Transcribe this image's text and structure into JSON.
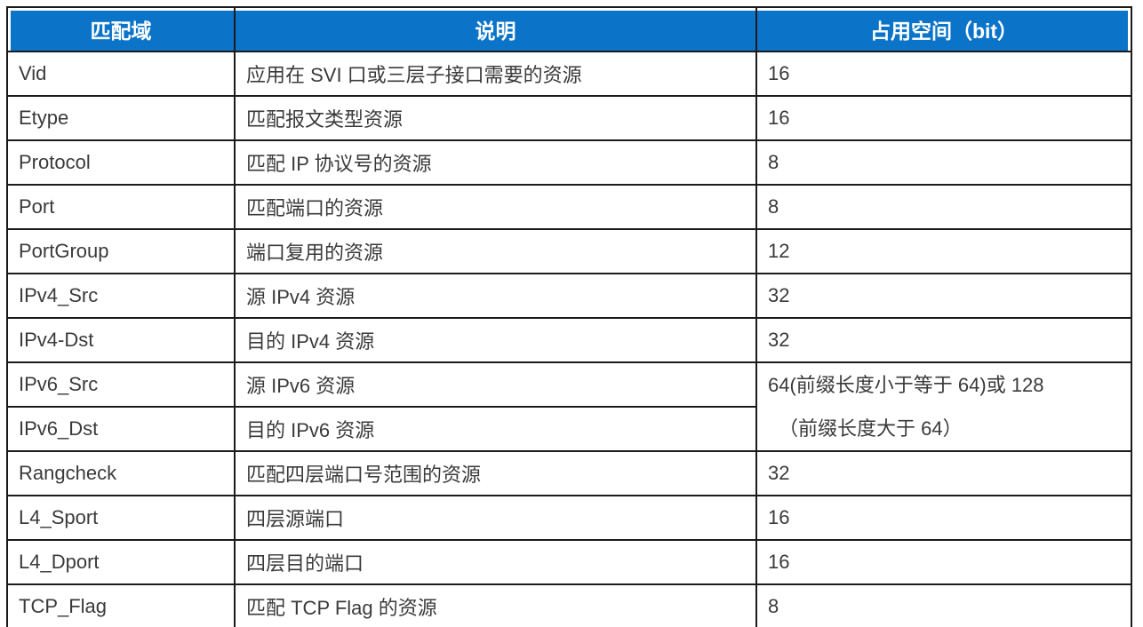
{
  "table": {
    "columns": [
      {
        "label": "匹配域"
      },
      {
        "label": "说明"
      },
      {
        "label": "占用空间（bit）"
      }
    ],
    "rows": [
      {
        "field": "Vid",
        "desc": "应用在 SVI 口或三层子接口需要的资源",
        "bits": "16"
      },
      {
        "field": "Etype",
        "desc": "匹配报文类型资源",
        "bits": "16"
      },
      {
        "field": "Protocol",
        "desc": "匹配 IP 协议号的资源",
        "bits": "8"
      },
      {
        "field": "Port",
        "desc": "匹配端口的资源",
        "bits": "8"
      },
      {
        "field": "PortGroup",
        "desc": "端口复用的资源",
        "bits": "12"
      },
      {
        "field": "IPv4_Src",
        "desc": "源 IPv4 资源",
        "bits": "32"
      },
      {
        "field": "IPv4-Dst",
        "desc": "目的 IPv4 资源",
        "bits": "32"
      },
      {
        "field": "IPv6_Src",
        "desc": "源 IPv6 资源"
      },
      {
        "field": "IPv6_Dst",
        "desc": "目的 IPv6 资源"
      },
      {
        "field": "Rangcheck",
        "desc": "匹配四层端口号范围的资源",
        "bits": "32"
      },
      {
        "field": "L4_Sport",
        "desc": "四层源端口",
        "bits": "16"
      },
      {
        "field": "L4_Dport",
        "desc": "四层目的端口",
        "bits": "16"
      },
      {
        "field": "TCP_Flag",
        "desc": "匹配 TCP Flag 的资源",
        "bits": "8"
      }
    ],
    "merged_bits": {
      "spans_rows": [
        "IPv6_Src",
        "IPv6_Dst"
      ],
      "line1": "64(前缀长度小于等于 64)或 128",
      "line2": "（前缀长度大于 64）"
    },
    "colors": {
      "header_bg": "#0b74c8",
      "header_text": "#ffffff",
      "body_text": "#3a3a3a",
      "border": "#1b1b1b"
    }
  }
}
